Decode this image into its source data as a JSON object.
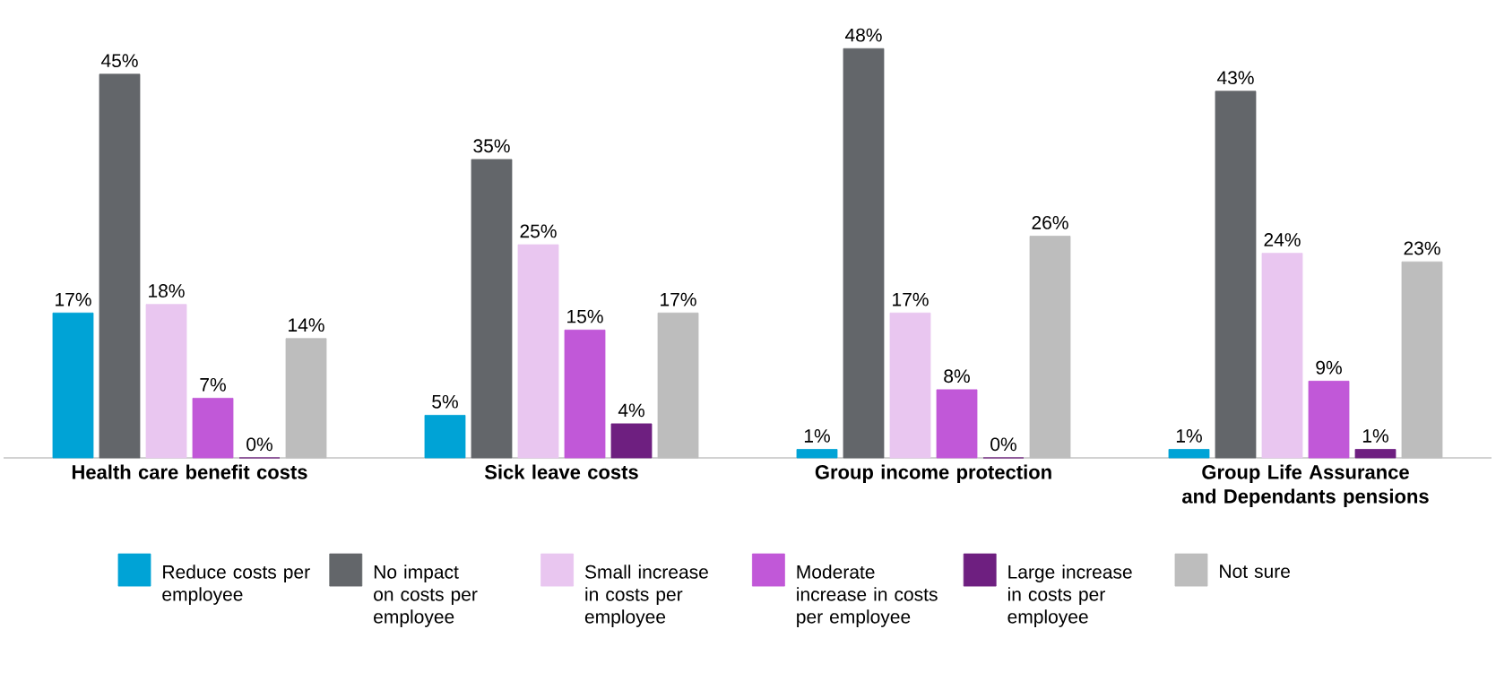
{
  "chart_data": {
    "type": "bar",
    "categories": [
      "Health care benefit costs",
      "Sick leave costs",
      "Group income protection",
      "Group Life Assurance and Dependants pensions"
    ],
    "legend": "bottom",
    "series": [
      {
        "name": "Reduce costs per employee",
        "color": "#00a3d6",
        "values": [
          17,
          5,
          1,
          1
        ],
        "value_labels": [
          "17%",
          "5%",
          "1%",
          "1%"
        ]
      },
      {
        "name": "No impact on costs per employee",
        "color": "#63666a",
        "values": [
          45,
          35,
          48,
          43
        ],
        "value_labels": [
          "45%",
          "35%",
          "48%",
          "43%"
        ]
      },
      {
        "name": "Small increase in costs per employee",
        "color": "#e9c6f0",
        "values": [
          18,
          25,
          17,
          24
        ],
        "value_labels": [
          "18%",
          "25%",
          "17%",
          "24%"
        ]
      },
      {
        "name": "Moderate increase in costs per employee",
        "color": "#c158d8",
        "values": [
          7,
          15,
          8,
          9
        ],
        "value_labels": [
          "7%",
          "15%",
          "8%",
          "9%"
        ]
      },
      {
        "name": "Large increase in costs per employee",
        "color": "#6e1f80",
        "values": [
          0,
          4,
          0,
          1
        ],
        "value_labels": [
          "0%",
          "4%",
          "0%",
          "1%"
        ]
      },
      {
        "name": "Not sure",
        "color": "#bdbdbd",
        "values": [
          14,
          17,
          26,
          23
        ],
        "value_labels": [
          "14%",
          "17%",
          "26%",
          "23%"
        ]
      }
    ]
  }
}
